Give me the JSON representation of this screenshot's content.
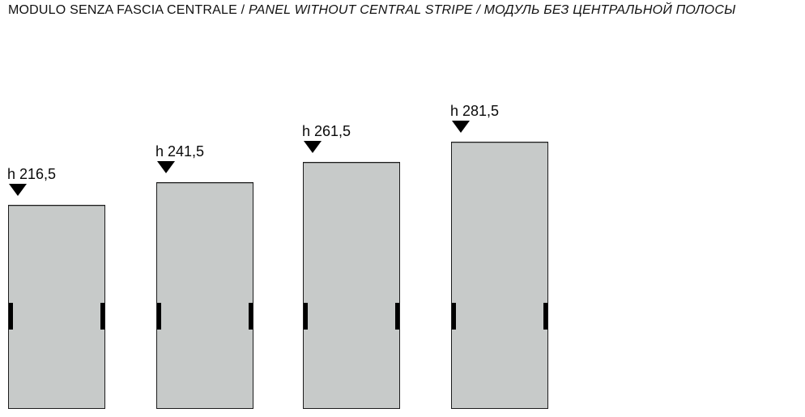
{
  "title": {
    "italian": "MODULO SENZA FASCIA CENTRALE",
    "separator": " / ",
    "english": "PANEL WITHOUT CENTRAL STRIPE",
    "russian": "МОДУЛЬ БЕЗ ЦЕНТРАЛЬНОЙ ПОЛОСЫ"
  },
  "panels": [
    {
      "label": "h 216,5",
      "height_value": 216.5
    },
    {
      "label": "h 241,5",
      "height_value": 241.5
    },
    {
      "label": "h 261,5",
      "height_value": 261.5
    },
    {
      "label": "h 281,5",
      "height_value": 281.5
    }
  ],
  "colors": {
    "panel_fill": "#c7cac9",
    "panel_border": "#1c1c1c",
    "marker": "#000000",
    "text": "#000000"
  }
}
